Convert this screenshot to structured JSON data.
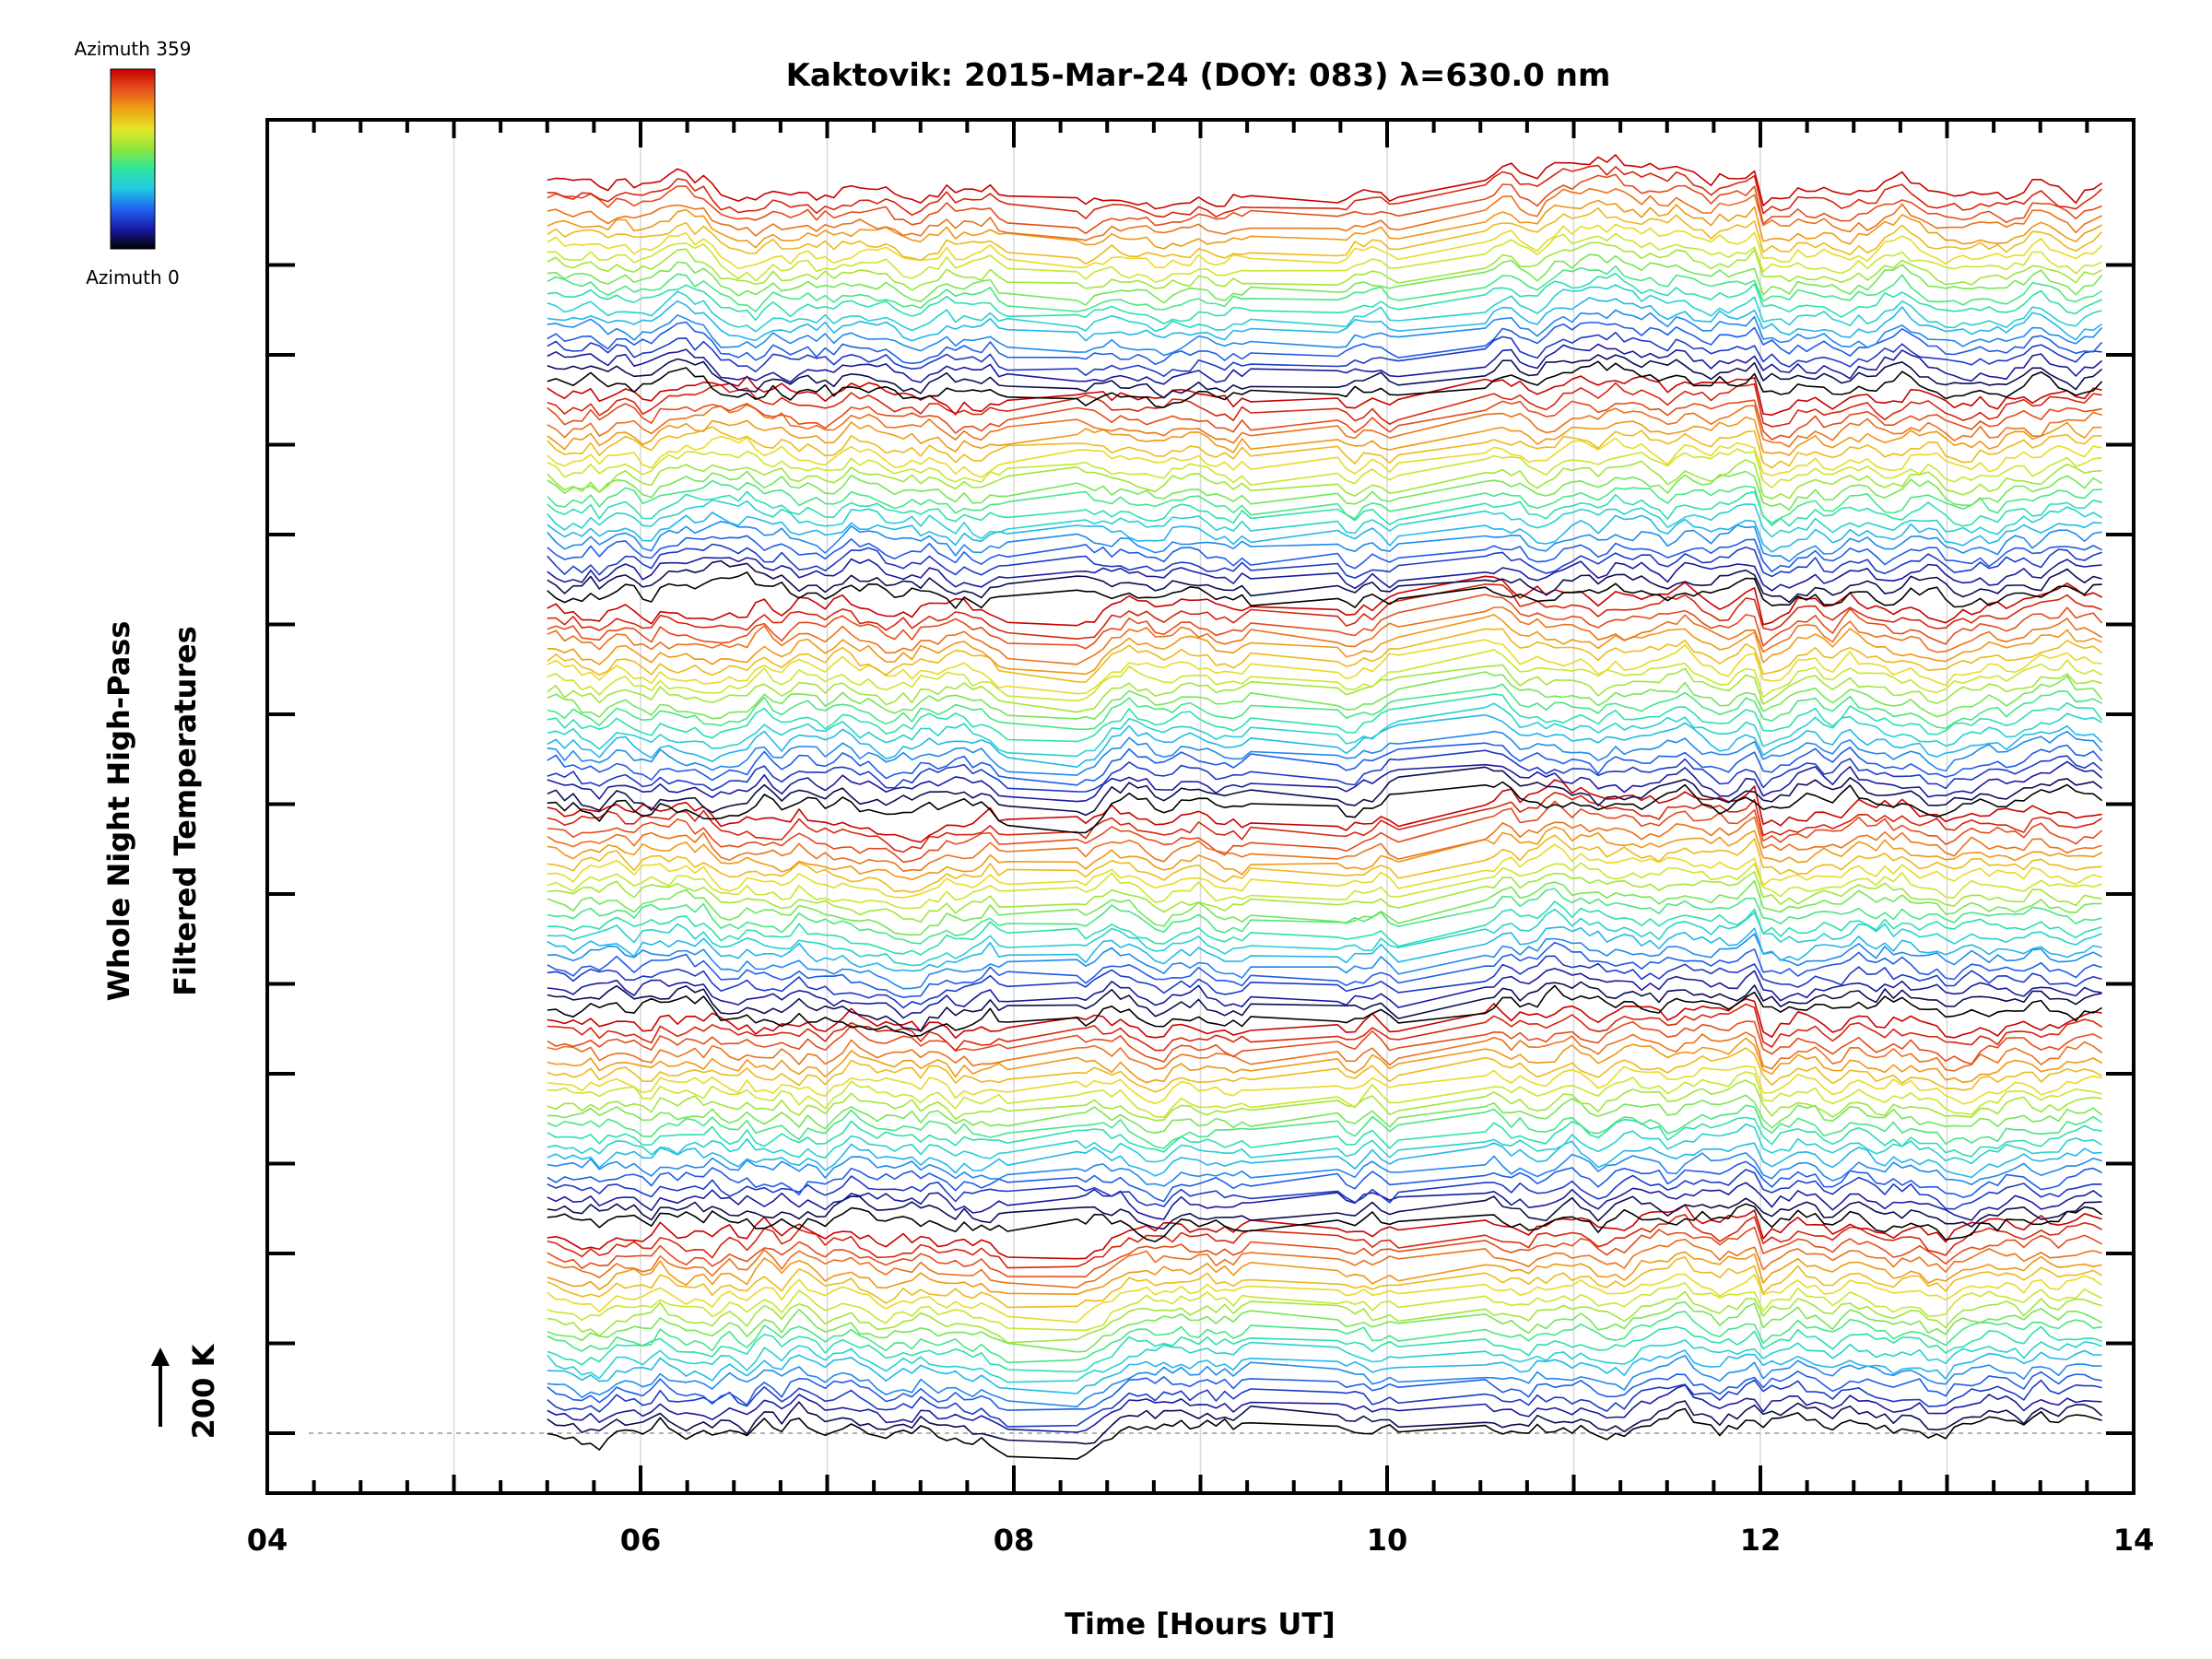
{
  "chart_data": {
    "type": "line",
    "title": "Kaktovik: 2015-Mar-24 (DOY: 083) λ=630.0 nm",
    "xlabel": "Time [Hours UT]",
    "ylabel_line1": "Whole Night High-Pass",
    "ylabel_line2": "Filtered Temperatures",
    "scale_label": "200 K",
    "xlim": [
      4,
      14
    ],
    "x_tick_labels": [
      "04",
      "06",
      "08",
      "10",
      "12",
      "14"
    ],
    "x_gridlines": [
      5,
      6,
      7,
      8,
      9,
      10,
      11,
      12,
      13
    ],
    "data_time_range": [
      5.5,
      13.83
    ],
    "baseline_label": "200 K reference",
    "n_traces": 120,
    "azimuth_range": [
      0,
      359
    ],
    "colorbar": {
      "top_label": "Azimuth  359",
      "bottom_label": "Azimuth  0",
      "colors": [
        "#000000",
        "#1a1aa8",
        "#1e64f0",
        "#22c8e6",
        "#2ee6a0",
        "#8ee63c",
        "#e6e628",
        "#f0a014",
        "#e6501e",
        "#c80000"
      ]
    },
    "features": [
      {
        "time": 8.3,
        "description": "step discontinuity"
      },
      {
        "time": 10.5,
        "description": "upward jump"
      },
      {
        "time": 12.0,
        "description": "sharp drop"
      }
    ]
  }
}
